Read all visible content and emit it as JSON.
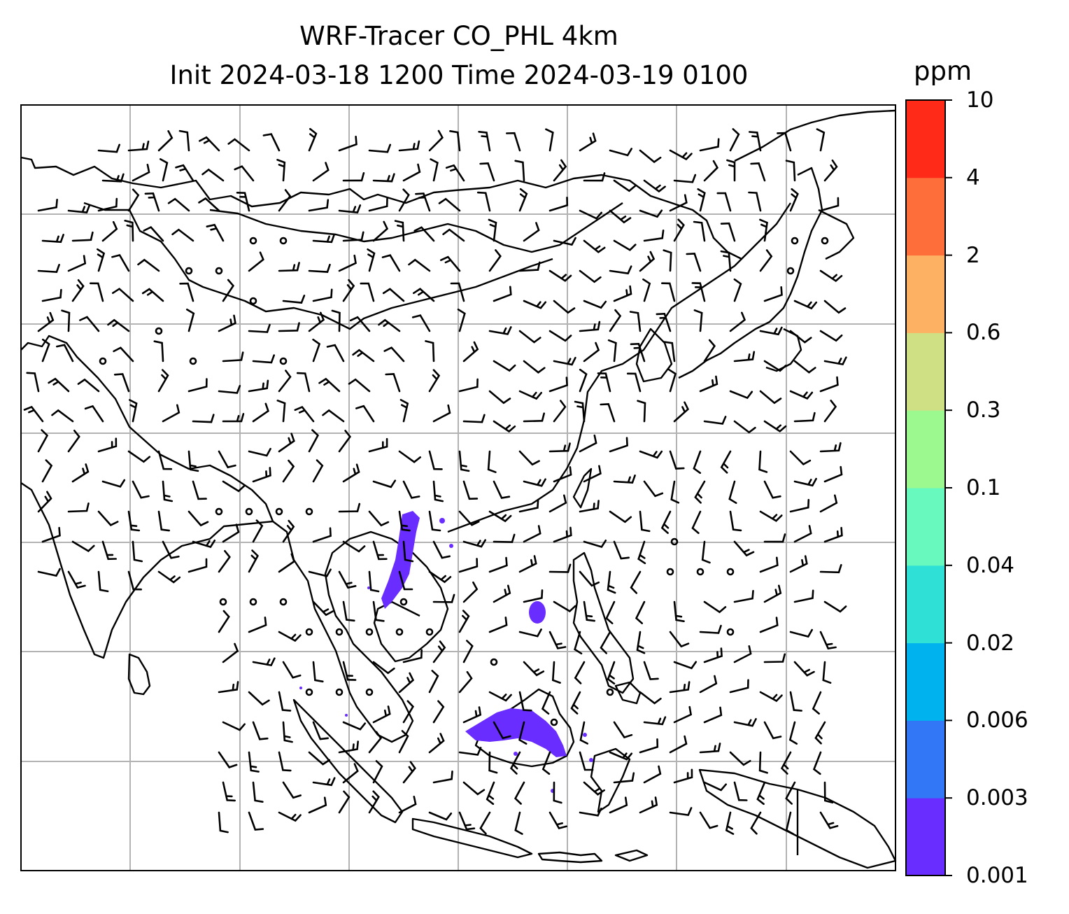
{
  "title_line1": "WRF-Tracer CO_PHL 4km",
  "title_line2": "Init 2024-03-18 1200 Time 2024-03-19 0100",
  "colorbar": {
    "unit": "ppm",
    "levels": [
      "0.001",
      "0.003",
      "0.006",
      "0.02",
      "0.04",
      "0.1",
      "0.3",
      "0.6",
      "2",
      "4",
      "10"
    ],
    "colors": [
      "#6a2dff",
      "#3277f6",
      "#00b2ee",
      "#2fe0d6",
      "#67f9bd",
      "#9bf98f",
      "#cfe084",
      "#fdb163",
      "#fe6e3b",
      "#ff2a17"
    ]
  },
  "map": {
    "frame_color": "#000000",
    "gridline_color": "#b3b3b3",
    "tracer_color": "#6a2dff"
  }
}
